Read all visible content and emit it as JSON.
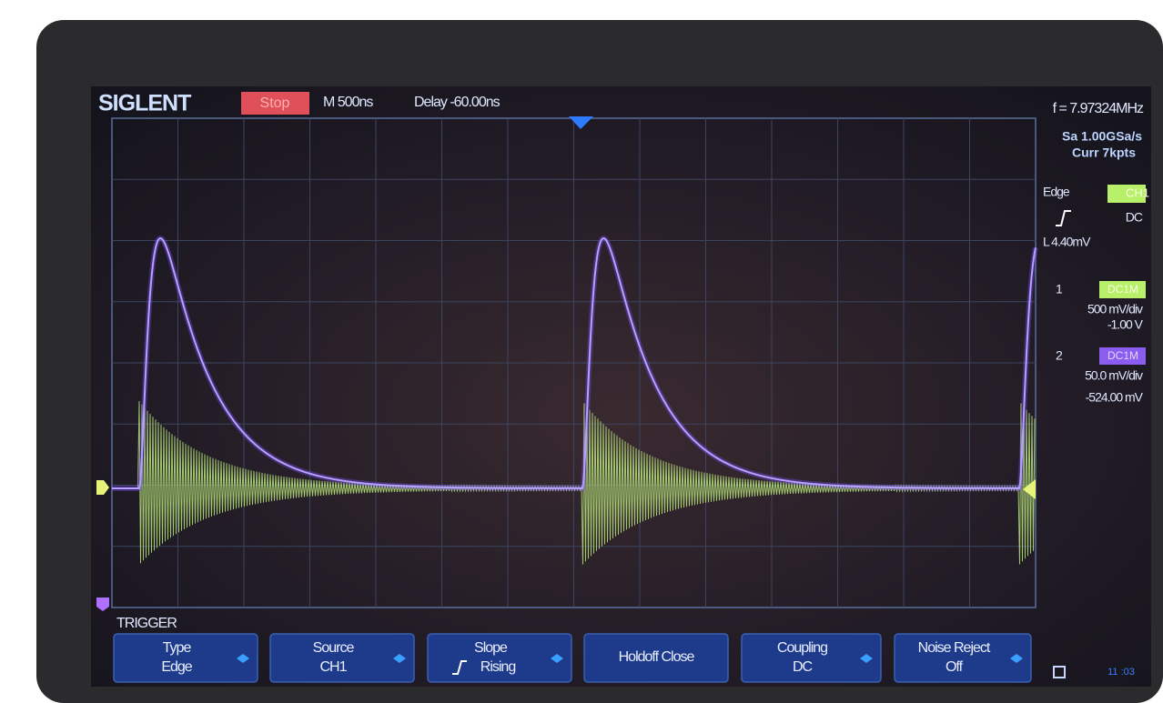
{
  "header": {
    "brand": "SIGLENT",
    "status": "Stop",
    "timebase": "M 500ns",
    "delay": "Delay -60.00ns",
    "frequency": "f = 7.97324MHz"
  },
  "acquisition": {
    "sample_rate": "Sa 1.00GSa/s",
    "memory": "Curr 7kpts"
  },
  "trigger": {
    "type": "Edge",
    "source": "CH1",
    "coupling": "DC",
    "level": "L 4.40mV"
  },
  "channels": [
    {
      "number": "1",
      "coupling": "DC1M",
      "scale": "500 mV/div",
      "offset": "-1.00 V"
    },
    {
      "number": "2",
      "coupling": "DC1M",
      "scale": "50.0 mV/div",
      "offset": "-524.00 mV"
    }
  ],
  "menu": {
    "title": "TRIGGER",
    "buttons": [
      {
        "label": "Type",
        "value": "Edge"
      },
      {
        "label": "Source",
        "value": "CH1"
      },
      {
        "label": "Slope",
        "value": "Rising"
      },
      {
        "label": "Holdoff Close"
      },
      {
        "label": "Coupling",
        "value": "DC"
      },
      {
        "label": "Noise Reject",
        "value": "Off"
      }
    ]
  },
  "clock": "11 :03"
}
